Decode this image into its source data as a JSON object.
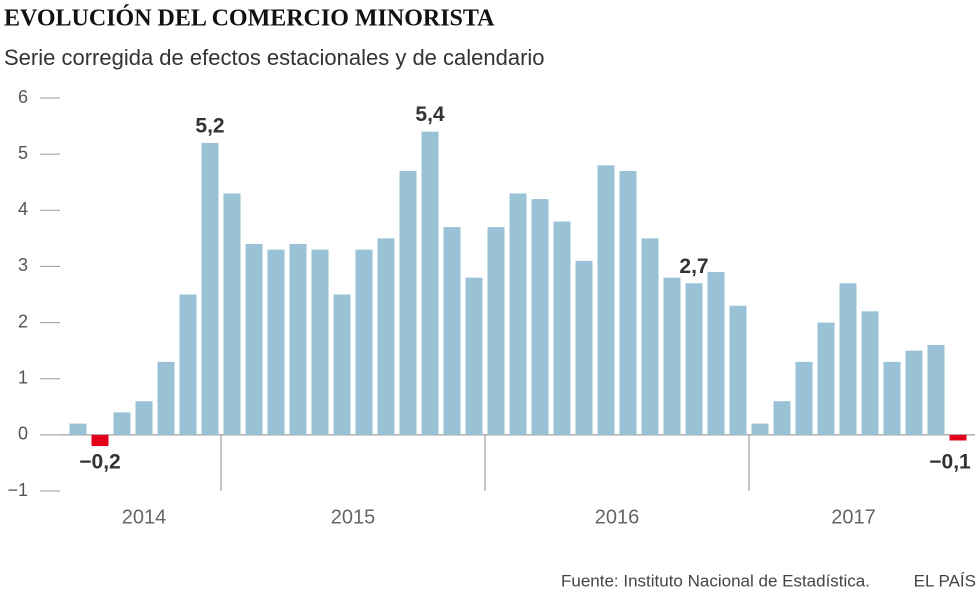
{
  "chart_data": {
    "type": "bar",
    "title": "EVOLUCIÓN DEL COMERCIO MINORISTA",
    "subtitle": "Serie corregida de efectos estacionales y de calendario",
    "categories": [
      null,
      null,
      null,
      null,
      null,
      null,
      null,
      null,
      null,
      null,
      null,
      null,
      null,
      null,
      null,
      null,
      null,
      null,
      null,
      null,
      null,
      null,
      null,
      null,
      null,
      null,
      null,
      null,
      null,
      null,
      null,
      null,
      null,
      null,
      null,
      null,
      null,
      null,
      null,
      null,
      null
    ],
    "values": [
      0.2,
      -0.2,
      0.4,
      0.6,
      1.3,
      2.5,
      5.2,
      4.3,
      3.4,
      3.3,
      3.4,
      3.3,
      2.5,
      3.3,
      3.5,
      4.7,
      5.4,
      3.7,
      2.8,
      3.7,
      4.3,
      4.2,
      3.8,
      3.1,
      4.8,
      4.7,
      3.5,
      2.8,
      2.7,
      2.9,
      2.3,
      0.2,
      0.6,
      1.3,
      2.0,
      2.7,
      2.2,
      1.3,
      1.5,
      1.6,
      -0.1
    ],
    "value_labels": [
      null,
      "−0,2",
      null,
      null,
      null,
      null,
      "5,2",
      null,
      null,
      null,
      null,
      null,
      null,
      null,
      null,
      null,
      "5,4",
      null,
      null,
      null,
      null,
      null,
      null,
      null,
      null,
      null,
      null,
      null,
      "2,7",
      null,
      null,
      null,
      null,
      null,
      null,
      null,
      null,
      null,
      null,
      null,
      "−0,1"
    ],
    "year_labels": [
      "2014",
      "2015",
      "2016",
      "2017"
    ],
    "color": "#99c2d6",
    "negative_color": "#e2001a",
    "ylim": [
      -1,
      6
    ],
    "yticks": [
      {
        "value": -1,
        "label": "−1"
      },
      0,
      1,
      2,
      3,
      4,
      5,
      6
    ],
    "source": "Fuente: Instituto Nacional de Estadística.",
    "brand": "EL PAÍS"
  }
}
